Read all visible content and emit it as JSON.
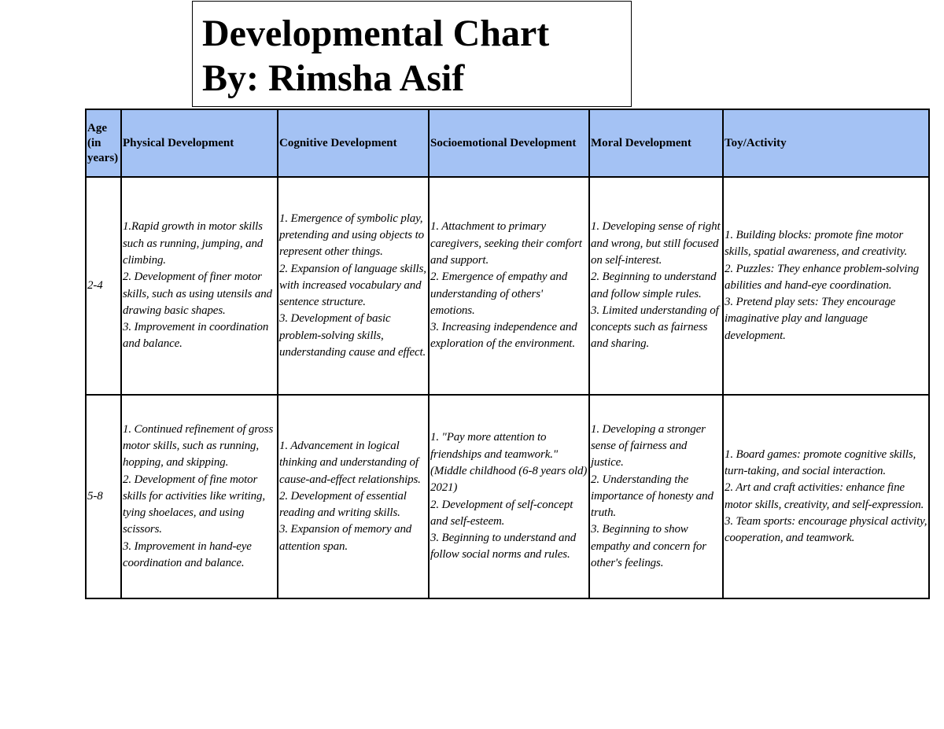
{
  "title": {
    "line1": "Developmental Chart",
    "line2": "By: Rimsha Asif"
  },
  "table": {
    "headers": [
      "Age (in years)",
      "Physical Development",
      "Cognitive Development",
      "Socioemotional Development",
      "Moral Development",
      "Toy/Activity"
    ],
    "rows": [
      {
        "age": "2-4",
        "physical": "1.Rapid growth in motor skills such as running, jumping, and climbing.\n2. Development of finer motor skills, such as using utensils and drawing basic shapes.\n3. Improvement in coordination and balance.",
        "cognitive": "1. Emergence of symbolic play, pretending and using objects to represent other things.\n2. Expansion of language skills, with increased vocabulary and sentence structure.\n3. Development of basic problem-solving skills, understanding cause and effect.",
        "socioemotional": "1. Attachment to primary caregivers, seeking their comfort and support.\n2. Emergence of empathy and understanding of others' emotions.\n3. Increasing independence and exploration of the environment.",
        "moral": "1. Developing sense of right and wrong, but still focused on self-interest.\n2. Beginning to understand and follow simple rules.\n3. Limited understanding of concepts such as fairness and sharing.",
        "toy": "1. Building blocks: promote fine motor skills, spatial awareness, and creativity.\n2. Puzzles: They enhance problem-solving abilities and hand-eye coordination.\n3. Pretend play sets: They encourage imaginative play and language development."
      },
      {
        "age": "5-8",
        "physical": "1. Continued refinement of gross motor skills, such as running, hopping, and skipping.\n2. Development of fine motor skills for activities like writing, tying shoelaces, and using scissors.\n3. Improvement in hand-eye coordination and balance.",
        "cognitive": "1. Advancement in logical thinking and understanding of cause-and-effect relationships.\n2. Development of essential reading and writing skills.\n3. Expansion of memory and attention span.",
        "socioemotional": "1. \"Pay more attention to friendships and teamwork.\" (Middle childhood (6-8 years old) 2021)\n2. Development of self-concept and self-esteem.\n3. Beginning to understand and follow social norms and rules.",
        "moral": "1. Developing a stronger sense of fairness and justice.\n2. Understanding the importance of honesty and truth.\n3. Beginning to show empathy and concern for other's feelings.",
        "toy": "1. Board games: promote cognitive skills, turn-taking, and social interaction.\n2. Art and craft activities: enhance fine motor skills, creativity, and self-expression.\n3. Team sports: encourage physical activity, cooperation, and teamwork."
      }
    ]
  }
}
